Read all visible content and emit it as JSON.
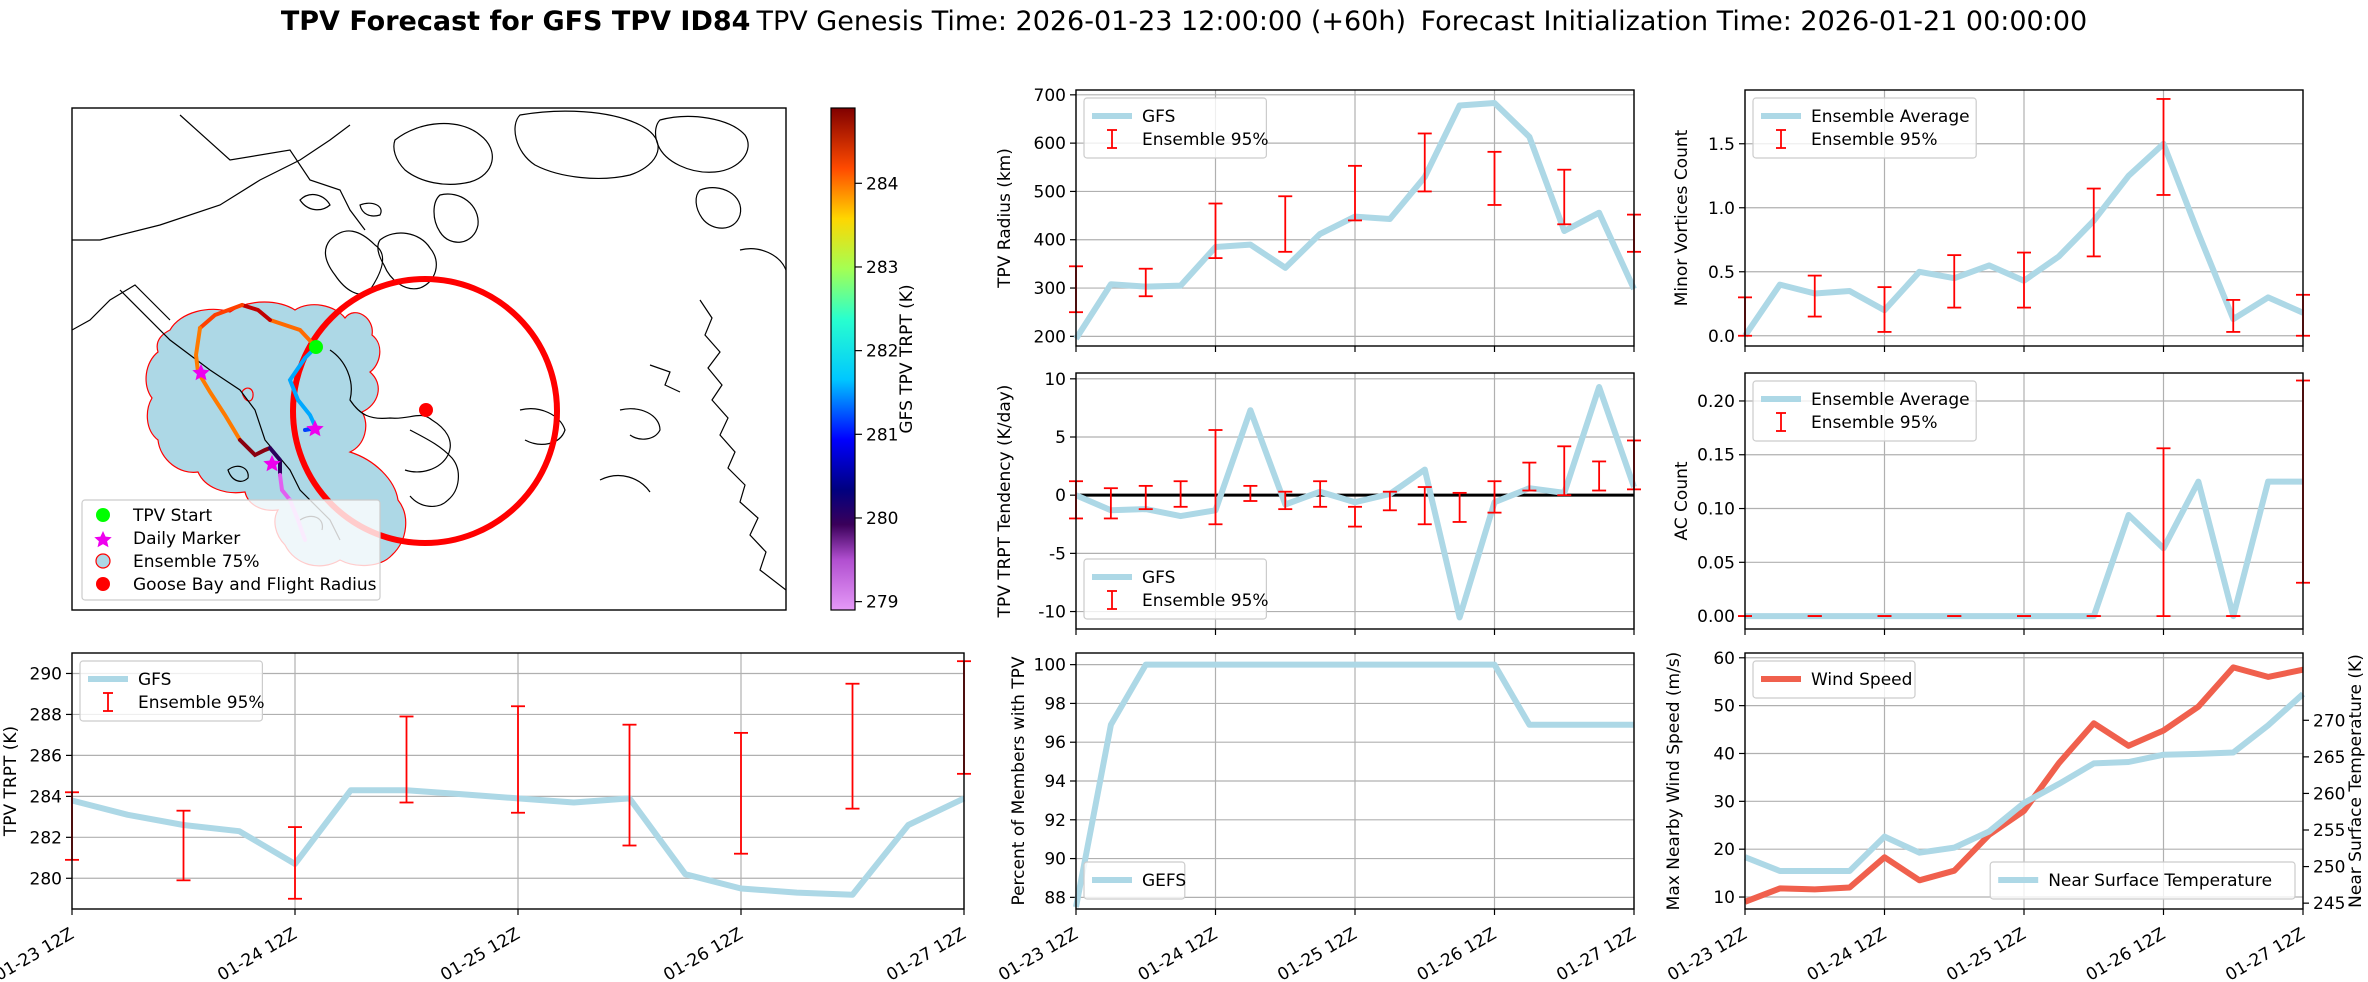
{
  "title": {
    "bold": "TPV Forecast for GFS TPV ID84",
    "genesis": "TPV Genesis Time: 2026-01-23 12:00:00 (+60h)",
    "init": "Forecast Initialization Time: 2026-01-21 00:00:00"
  },
  "colors": {
    "gfs": "#add8e6",
    "ensemble": "#ff0000",
    "wind": "#f0604d",
    "temp_axis": "#4169e1",
    "zero_line": "#000000"
  },
  "map": {
    "legend": [
      "TPV Start",
      "Daily Marker",
      "Ensemble 75%",
      "Goose Bay and Flight Radius"
    ],
    "colorbar_label": "GFS TPV TRPT (K)",
    "colorbar_ticks": [
      "279",
      "280",
      "281",
      "282",
      "283",
      "284"
    ],
    "colorbar_range": [
      278.9,
      284.9
    ]
  },
  "x_tick_labels": [
    "01-23 12Z",
    "01-24 12Z",
    "01-25 12Z",
    "01-26 12Z",
    "01-27 12Z"
  ],
  "chart_data": [
    {
      "id": "radius",
      "type": "line",
      "ylabel": "TPV Radius (km)",
      "ylim": [
        180,
        710
      ],
      "yticks": [
        200,
        300,
        400,
        500,
        600,
        700
      ],
      "legend": [
        "GFS",
        "Ensemble 95%"
      ],
      "legend_pos": "top-left",
      "series": [
        {
          "name": "GFS",
          "x": [
            0,
            0.25,
            0.5,
            0.75,
            1,
            1.25,
            1.5,
            1.75,
            2,
            2.25,
            2.5,
            2.75,
            3,
            3.25,
            3.5,
            3.75,
            4
          ],
          "values": [
            195,
            308,
            303,
            305,
            385,
            390,
            342,
            412,
            448,
            443,
            530,
            678,
            683,
            613,
            418,
            456,
            298
          ]
        }
      ],
      "errorbars": [
        {
          "x": 0,
          "lo": 250,
          "hi": 345
        },
        {
          "x": 0.5,
          "lo": 283,
          "hi": 340
        },
        {
          "x": 1,
          "lo": 362,
          "hi": 475
        },
        {
          "x": 1.5,
          "lo": 375,
          "hi": 490
        },
        {
          "x": 2,
          "lo": 440,
          "hi": 553
        },
        {
          "x": 2.5,
          "lo": 500,
          "hi": 620
        },
        {
          "x": 3,
          "lo": 472,
          "hi": 582
        },
        {
          "x": 3.5,
          "lo": 432,
          "hi": 545
        },
        {
          "x": 4,
          "lo": 375,
          "hi": 452
        }
      ]
    },
    {
      "id": "minor_vortices",
      "type": "line",
      "ylabel": "Minor Vortices Count",
      "ylim": [
        -0.08,
        1.92
      ],
      "yticks": [
        0.0,
        0.5,
        1.0,
        1.5
      ],
      "legend": [
        "Ensemble Average",
        "Ensemble 95%"
      ],
      "legend_pos": "top-left",
      "series": [
        {
          "name": "Ensemble Average",
          "x": [
            0,
            0.25,
            0.5,
            0.75,
            1,
            1.25,
            1.5,
            1.75,
            2,
            2.25,
            2.5,
            2.75,
            3,
            3.25,
            3.5,
            3.75,
            4
          ],
          "values": [
            0.0,
            0.4,
            0.33,
            0.35,
            0.2,
            0.5,
            0.45,
            0.55,
            0.43,
            0.62,
            0.9,
            1.25,
            1.5,
            0.8,
            0.13,
            0.3,
            0.18
          ]
        }
      ],
      "errorbars": [
        {
          "x": 0,
          "lo": 0.0,
          "hi": 0.3
        },
        {
          "x": 0.5,
          "lo": 0.15,
          "hi": 0.47
        },
        {
          "x": 1,
          "lo": 0.03,
          "hi": 0.38
        },
        {
          "x": 1.5,
          "lo": 0.22,
          "hi": 0.63
        },
        {
          "x": 2,
          "lo": 0.22,
          "hi": 0.65
        },
        {
          "x": 2.5,
          "lo": 0.62,
          "hi": 1.15
        },
        {
          "x": 3,
          "lo": 1.1,
          "hi": 1.85
        },
        {
          "x": 3.5,
          "lo": 0.03,
          "hi": 0.28
        },
        {
          "x": 4,
          "lo": 0.0,
          "hi": 0.32
        }
      ]
    },
    {
      "id": "tendency",
      "type": "line",
      "ylabel": "TPV TRPT Tendency (K/day)",
      "ylim": [
        -11.5,
        10.5
      ],
      "yticks": [
        -10,
        -5,
        0,
        5,
        10
      ],
      "zero_line": true,
      "legend": [
        "GFS",
        "Ensemble 95%"
      ],
      "legend_pos": "bottom-left",
      "series": [
        {
          "name": "GFS",
          "x": [
            0,
            0.25,
            0.5,
            0.75,
            1,
            1.25,
            1.5,
            1.75,
            2,
            2.25,
            2.5,
            2.75,
            3,
            3.25,
            3.5,
            3.75,
            4
          ],
          "values": [
            0,
            -1.3,
            -1.2,
            -1.8,
            -1.3,
            7.3,
            -0.8,
            0.3,
            -0.6,
            0.1,
            2.2,
            -10.5,
            -0.6,
            0.6,
            0.2,
            9.3,
            0.7
          ]
        }
      ],
      "errorbars": [
        {
          "x": 0,
          "lo": -2.0,
          "hi": 1.2
        },
        {
          "x": 0.25,
          "lo": -2.0,
          "hi": 0.6
        },
        {
          "x": 0.5,
          "lo": -1.2,
          "hi": 0.8
        },
        {
          "x": 0.75,
          "lo": -1.0,
          "hi": 1.2
        },
        {
          "x": 1,
          "lo": -2.5,
          "hi": 5.6
        },
        {
          "x": 1.25,
          "lo": -0.5,
          "hi": 0.8
        },
        {
          "x": 1.5,
          "lo": -1.2,
          "hi": 0.3
        },
        {
          "x": 1.75,
          "lo": -1.0,
          "hi": 1.2
        },
        {
          "x": 2,
          "lo": -2.7,
          "hi": -1.0
        },
        {
          "x": 2.25,
          "lo": -1.3,
          "hi": 0.3
        },
        {
          "x": 2.5,
          "lo": -2.5,
          "hi": 0.7
        },
        {
          "x": 2.75,
          "lo": -2.3,
          "hi": 0.2
        },
        {
          "x": 3,
          "lo": -1.5,
          "hi": 1.2
        },
        {
          "x": 3.25,
          "lo": 0.4,
          "hi": 2.8
        },
        {
          "x": 3.5,
          "lo": 0.0,
          "hi": 4.2
        },
        {
          "x": 3.75,
          "lo": 0.4,
          "hi": 2.9
        },
        {
          "x": 4,
          "lo": 0.5,
          "hi": 4.7
        }
      ]
    },
    {
      "id": "ac_count",
      "type": "line",
      "ylabel": "AC Count",
      "ylim": [
        -0.012,
        0.226
      ],
      "yticks": [
        0.0,
        0.05,
        0.1,
        0.15,
        0.2
      ],
      "legend": [
        "Ensemble Average",
        "Ensemble 95%"
      ],
      "legend_pos": "top-left",
      "series": [
        {
          "name": "Ensemble Average",
          "x": [
            0,
            0.25,
            0.5,
            0.75,
            1,
            1.25,
            1.5,
            1.75,
            2,
            2.25,
            2.5,
            2.75,
            3,
            3.25,
            3.5,
            3.75,
            4
          ],
          "values": [
            0,
            0,
            0,
            0,
            0,
            0,
            0,
            0,
            0,
            0,
            0,
            0.094,
            0.063,
            0.125,
            0,
            0.125,
            0.125
          ]
        }
      ],
      "errorbars": [
        {
          "x": 0,
          "lo": 0,
          "hi": 0
        },
        {
          "x": 0.5,
          "lo": 0,
          "hi": 0
        },
        {
          "x": 1,
          "lo": 0,
          "hi": 0
        },
        {
          "x": 1.5,
          "lo": 0,
          "hi": 0
        },
        {
          "x": 2,
          "lo": 0,
          "hi": 0
        },
        {
          "x": 2.5,
          "lo": 0,
          "hi": 0
        },
        {
          "x": 3,
          "lo": 0,
          "hi": 0.156
        },
        {
          "x": 3.5,
          "lo": 0,
          "hi": 0
        },
        {
          "x": 4,
          "lo": 0.031,
          "hi": 0.219
        }
      ]
    },
    {
      "id": "trpt",
      "type": "line",
      "ylabel": "TPV TRPT (K)",
      "ylim": [
        278.5,
        291.0
      ],
      "yticks": [
        280,
        282,
        284,
        286,
        288,
        290
      ],
      "legend": [
        "GFS",
        "Ensemble 95%"
      ],
      "legend_pos": "top-left",
      "series": [
        {
          "name": "GFS",
          "x": [
            0,
            0.25,
            0.5,
            0.75,
            1,
            1.25,
            1.5,
            1.75,
            2,
            2.25,
            2.5,
            2.75,
            3,
            3.25,
            3.5,
            3.75,
            4
          ],
          "values": [
            283.8,
            283.1,
            282.6,
            282.3,
            280.7,
            284.3,
            284.3,
            284.1,
            283.9,
            283.7,
            283.9,
            280.2,
            279.5,
            279.3,
            279.2,
            282.6,
            283.9
          ]
        }
      ],
      "errorbars": [
        {
          "x": 0,
          "lo": 280.9,
          "hi": 284.2
        },
        {
          "x": 0.5,
          "lo": 279.9,
          "hi": 283.3
        },
        {
          "x": 1,
          "lo": 279.0,
          "hi": 282.5
        },
        {
          "x": 1.5,
          "lo": 283.7,
          "hi": 287.9
        },
        {
          "x": 2,
          "lo": 283.2,
          "hi": 288.4
        },
        {
          "x": 2.5,
          "lo": 281.6,
          "hi": 287.5
        },
        {
          "x": 3,
          "lo": 281.2,
          "hi": 287.1
        },
        {
          "x": 3.5,
          "lo": 283.4,
          "hi": 289.5
        },
        {
          "x": 4,
          "lo": 285.1,
          "hi": 290.6
        }
      ]
    },
    {
      "id": "members",
      "type": "line",
      "ylabel": "Percent of Members with TPV",
      "ylim": [
        87.4,
        100.6
      ],
      "yticks": [
        88,
        90,
        92,
        94,
        96,
        98,
        100
      ],
      "legend": [
        "GEFS"
      ],
      "legend_pos": "bottom-left",
      "series": [
        {
          "name": "GEFS",
          "x": [
            0,
            0.25,
            0.5,
            0.75,
            1,
            1.25,
            1.5,
            1.75,
            2,
            2.25,
            2.5,
            2.75,
            3,
            3.25,
            3.5,
            3.75,
            4
          ],
          "values": [
            87.5,
            96.9,
            100,
            100,
            100,
            100,
            100,
            100,
            100,
            100,
            100,
            100,
            100,
            96.9,
            96.9,
            96.9,
            96.9
          ]
        }
      ]
    },
    {
      "id": "wind_temp",
      "type": "line",
      "ylabel": "Max Nearby Wind Speed (m/s)",
      "ylabel_right": "Near Surface Temperature (K)",
      "ylim": [
        7.5,
        61
      ],
      "yticks": [
        10,
        20,
        30,
        40,
        50,
        60
      ],
      "ylim_right": [
        244.2,
        279.2
      ],
      "yticks_right": [
        245,
        250,
        255,
        260,
        265,
        270
      ],
      "legend": [
        "Wind Speed"
      ],
      "legend_right": [
        "Near Surface Temperature"
      ],
      "series": [
        {
          "name": "Wind Speed",
          "axis": "left",
          "x": [
            0,
            0.25,
            0.5,
            0.75,
            1,
            1.25,
            1.5,
            1.75,
            2,
            2.25,
            2.5,
            2.75,
            3,
            3.25,
            3.5,
            3.75,
            4
          ],
          "values": [
            9,
            11.8,
            11.6,
            12,
            18.3,
            13.5,
            15.5,
            23,
            28,
            38,
            46.3,
            41.6,
            44.8,
            49.8,
            58,
            56,
            57.5
          ]
        },
        {
          "name": "Near Surface Temperature",
          "axis": "right",
          "x": [
            0,
            0.25,
            0.5,
            0.75,
            1,
            1.25,
            1.5,
            1.75,
            2,
            2.25,
            2.5,
            2.75,
            3,
            3.25,
            3.5,
            3.75,
            4
          ],
          "values": [
            251.3,
            249.4,
            249.4,
            249.4,
            254.1,
            251.9,
            252.6,
            254.8,
            258.7,
            261.3,
            264.1,
            264.3,
            265.3,
            265.4,
            265.6,
            269.3,
            273.6
          ]
        }
      ]
    }
  ]
}
